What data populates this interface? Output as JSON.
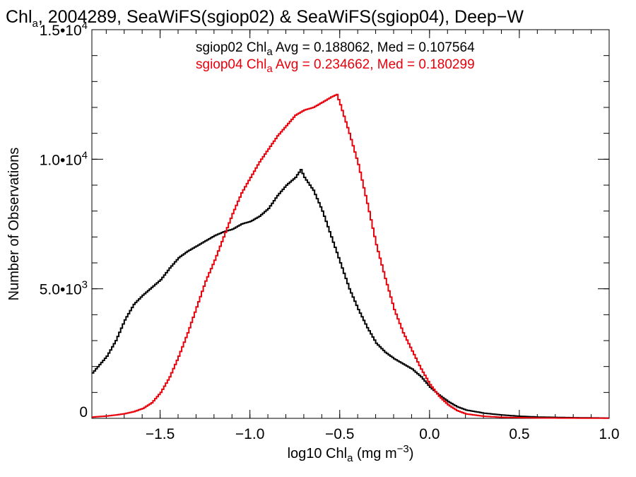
{
  "chart_data": {
    "type": "line",
    "title": {
      "text": "Chl_a, 2004289, SeaWiFS(sgiop02) & SeaWiFS(sgiop04), Deep-W",
      "parts": [
        "Chl",
        "a",
        ", 2004289, SeaWiFS(sgiop02) & SeaWiFS(sgiop04), Deep−W"
      ]
    },
    "xlabel": {
      "text": "log10 Chl_a (mg m^-3)",
      "parts": [
        "log10 Chl",
        "a",
        " (mg m",
        "−3",
        ")"
      ]
    },
    "ylabel": "Number of Observations",
    "xlim": [
      -1.88,
      1.0
    ],
    "ylim": [
      0,
      15000
    ],
    "x_ticks": [
      {
        "value": -1.5,
        "label": "−1.5"
      },
      {
        "value": -1.0,
        "label": "−1.0"
      },
      {
        "value": -0.5,
        "label": "−0.5"
      },
      {
        "value": 0.0,
        "label": "0.0"
      },
      {
        "value": 0.5,
        "label": "0.5"
      },
      {
        "value": 1.0,
        "label": "1.0"
      }
    ],
    "y_ticks": [
      {
        "value": 0,
        "mant": "0",
        "exp": ""
      },
      {
        "value": 5000,
        "mant": "5.0•10",
        "exp": "3"
      },
      {
        "value": 10000,
        "mant": "1.0•10",
        "exp": "4"
      },
      {
        "value": 15000,
        "mant": "1.5•10",
        "exp": "4"
      }
    ],
    "x_minor_step": 0.1,
    "y_minor_step": 1000,
    "grid": false,
    "legend_position": "top",
    "legend": [
      {
        "prefix": "sgiop02 Chl",
        "sub": "a",
        "suffix": " Avg = 0.188062, Med = 0.107564",
        "color": "#000000"
      },
      {
        "prefix": "sgiop04 Chl",
        "sub": "a",
        "suffix": " Avg = 0.234662, Med = 0.180299",
        "color": "#e8000b"
      }
    ],
    "series": [
      {
        "color": "#000000",
        "style": "step",
        "points": [
          [
            -1.88,
            1750
          ],
          [
            -1.8,
            2400
          ],
          [
            -1.75,
            3000
          ],
          [
            -1.7,
            3800
          ],
          [
            -1.65,
            4400
          ],
          [
            -1.6,
            4750
          ],
          [
            -1.55,
            5050
          ],
          [
            -1.5,
            5350
          ],
          [
            -1.45,
            5800
          ],
          [
            -1.4,
            6200
          ],
          [
            -1.35,
            6450
          ],
          [
            -1.3,
            6650
          ],
          [
            -1.25,
            6850
          ],
          [
            -1.2,
            7050
          ],
          [
            -1.15,
            7200
          ],
          [
            -1.1,
            7300
          ],
          [
            -1.05,
            7500
          ],
          [
            -1.0,
            7600
          ],
          [
            -0.95,
            7800
          ],
          [
            -0.9,
            8100
          ],
          [
            -0.85,
            8600
          ],
          [
            -0.8,
            9000
          ],
          [
            -0.75,
            9300
          ],
          [
            -0.72,
            9600
          ],
          [
            -0.7,
            9300
          ],
          [
            -0.65,
            8800
          ],
          [
            -0.6,
            8000
          ],
          [
            -0.55,
            7000
          ],
          [
            -0.5,
            6000
          ],
          [
            -0.45,
            5000
          ],
          [
            -0.4,
            4200
          ],
          [
            -0.35,
            3500
          ],
          [
            -0.3,
            2900
          ],
          [
            -0.25,
            2550
          ],
          [
            -0.2,
            2300
          ],
          [
            -0.15,
            2100
          ],
          [
            -0.1,
            1900
          ],
          [
            -0.05,
            1600
          ],
          [
            0.0,
            1200
          ],
          [
            0.05,
            900
          ],
          [
            0.1,
            650
          ],
          [
            0.15,
            450
          ],
          [
            0.2,
            320
          ],
          [
            0.3,
            200
          ],
          [
            0.4,
            130
          ],
          [
            0.5,
            80
          ],
          [
            0.6,
            50
          ],
          [
            0.8,
            25
          ],
          [
            1.0,
            10
          ]
        ]
      },
      {
        "color": "#e8000b",
        "style": "step",
        "points": [
          [
            -1.88,
            50
          ],
          [
            -1.8,
            90
          ],
          [
            -1.75,
            130
          ],
          [
            -1.7,
            180
          ],
          [
            -1.65,
            260
          ],
          [
            -1.6,
            380
          ],
          [
            -1.55,
            600
          ],
          [
            -1.5,
            1000
          ],
          [
            -1.45,
            1600
          ],
          [
            -1.4,
            2400
          ],
          [
            -1.35,
            3300
          ],
          [
            -1.3,
            4300
          ],
          [
            -1.25,
            5300
          ],
          [
            -1.2,
            6100
          ],
          [
            -1.15,
            7000
          ],
          [
            -1.1,
            7900
          ],
          [
            -1.05,
            8700
          ],
          [
            -1.0,
            9300
          ],
          [
            -0.95,
            9900
          ],
          [
            -0.9,
            10400
          ],
          [
            -0.85,
            10900
          ],
          [
            -0.8,
            11300
          ],
          [
            -0.75,
            11700
          ],
          [
            -0.7,
            11900
          ],
          [
            -0.65,
            12000
          ],
          [
            -0.6,
            12200
          ],
          [
            -0.55,
            12400
          ],
          [
            -0.52,
            12500
          ],
          [
            -0.5,
            12100
          ],
          [
            -0.45,
            11000
          ],
          [
            -0.4,
            9800
          ],
          [
            -0.35,
            8300
          ],
          [
            -0.3,
            6700
          ],
          [
            -0.25,
            5400
          ],
          [
            -0.2,
            4200
          ],
          [
            -0.15,
            3300
          ],
          [
            -0.1,
            2600
          ],
          [
            -0.05,
            1900
          ],
          [
            0.0,
            1300
          ],
          [
            0.05,
            850
          ],
          [
            0.1,
            520
          ],
          [
            0.15,
            300
          ],
          [
            0.2,
            170
          ],
          [
            0.3,
            80
          ],
          [
            0.4,
            40
          ],
          [
            0.6,
            15
          ],
          [
            1.0,
            5
          ]
        ]
      }
    ]
  }
}
